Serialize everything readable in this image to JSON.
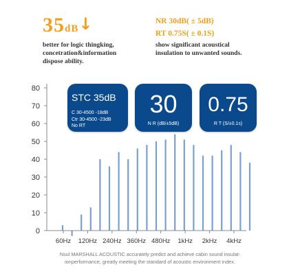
{
  "header": {
    "value": "35",
    "unit": "dB",
    "arrow": "↓",
    "desc_line1": "better for logic thingking,",
    "desc_line2": "concetration&information",
    "desc_line3": "dispose ability.",
    "nr_line": "NR 30dB( ± 5dB)",
    "rt_line": "RT 0.75S( ± 0.1S)",
    "show_line1": "show significant acoustical",
    "show_line2": "insulation to unwanted sounds."
  },
  "cards": {
    "stc": {
      "title": "STC 35dB",
      "row1": "C  30-4500  -18dB",
      "row2": "Ctr 30-4500  -23dB",
      "row3": "No   RT"
    },
    "nr": {
      "value": "30",
      "label": "N R (dB/±5dB)"
    },
    "rt": {
      "value": "0.75",
      "label": "R T (S/±0.1s)"
    }
  },
  "caption": {
    "line1": "Nsul MARSHALL ACOUSTIC accurately predict and achieve cabin sound insulat-",
    "line2": "ionperformance, greatly meeting the standard of acoustic environment index."
  },
  "colors": {
    "orange": "#f0a020",
    "navy": "#0a4a8c",
    "bar": "#7aa0d0"
  },
  "chart_data": {
    "type": "bar",
    "title": "",
    "xlabel": "",
    "ylabel": "",
    "ylim": [
      0,
      80
    ],
    "yticks": [
      0,
      10,
      20,
      30,
      40,
      50,
      60,
      70,
      80
    ],
    "grid": false,
    "xtick_labels": [
      "60Hz",
      "120Hz",
      "240Hz",
      "360Hz",
      "480Hz",
      "1kHz",
      "2kHz",
      "4kHz"
    ],
    "values": [
      3,
      -3,
      9,
      13,
      40,
      36,
      44,
      40,
      46,
      48,
      50,
      51,
      54,
      51,
      48,
      42,
      42,
      45,
      48,
      44,
      38
    ]
  }
}
